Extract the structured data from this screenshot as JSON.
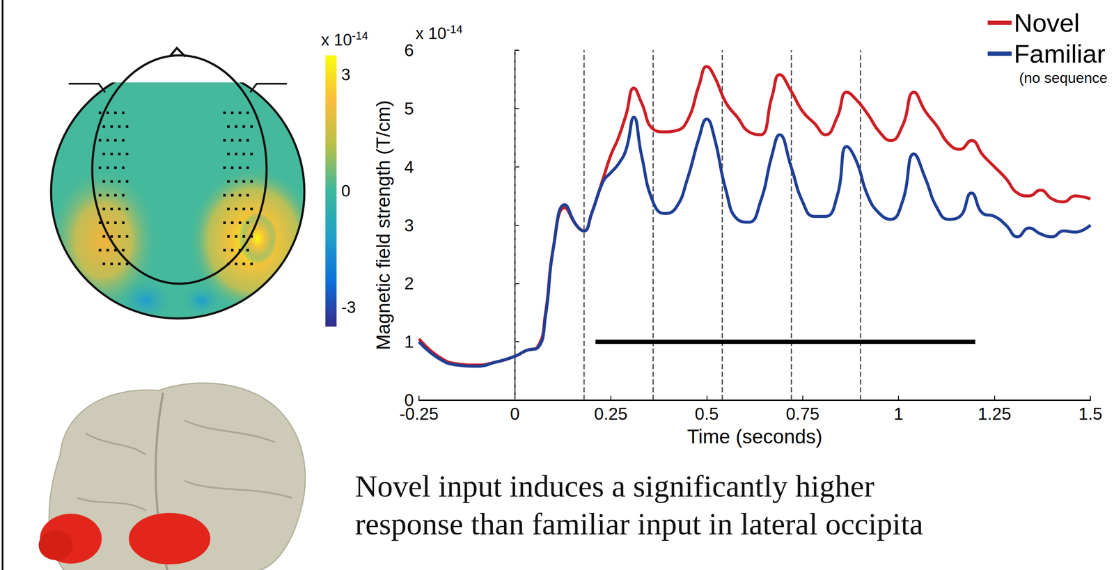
{
  "chart_data": {
    "type": "line",
    "x": [
      -0.25,
      -0.2,
      -0.15,
      -0.1,
      -0.05,
      0,
      0.03,
      0.06,
      0.08,
      0.1,
      0.13,
      0.16,
      0.18,
      0.2,
      0.23,
      0.25,
      0.27,
      0.29,
      0.31,
      0.33,
      0.36,
      0.39,
      0.42,
      0.45,
      0.48,
      0.5,
      0.52,
      0.55,
      0.58,
      0.61,
      0.64,
      0.67,
      0.69,
      0.72,
      0.75,
      0.78,
      0.81,
      0.84,
      0.865,
      0.89,
      0.92,
      0.95,
      0.98,
      1.01,
      1.04,
      1.07,
      1.1,
      1.13,
      1.16,
      1.19,
      1.22,
      1.25,
      1.28,
      1.31,
      1.34,
      1.37,
      1.4,
      1.43,
      1.46,
      1.5
    ],
    "series": [
      {
        "name": "Novel",
        "color": "#cc1f26",
        "values": [
          1.05,
          0.75,
          0.62,
          0.6,
          0.65,
          0.75,
          0.85,
          0.92,
          1.5,
          2.6,
          3.3,
          3.0,
          2.9,
          3.2,
          3.8,
          4.2,
          4.5,
          4.9,
          5.35,
          5.1,
          4.65,
          4.6,
          4.62,
          4.8,
          5.4,
          5.72,
          5.55,
          5.1,
          4.85,
          4.6,
          4.55,
          5.2,
          5.58,
          5.3,
          4.95,
          4.75,
          4.55,
          4.85,
          5.28,
          5.15,
          4.9,
          4.6,
          4.45,
          4.7,
          5.28,
          4.95,
          4.7,
          4.4,
          4.3,
          4.45,
          4.2,
          4.0,
          3.8,
          3.55,
          3.5,
          3.6,
          3.45,
          3.4,
          3.5,
          3.45
        ]
      },
      {
        "name": "Familiar",
        "color": "#1f3f94",
        "values": [
          1.0,
          0.72,
          0.6,
          0.58,
          0.65,
          0.75,
          0.85,
          0.9,
          1.45,
          2.6,
          3.35,
          3.0,
          2.9,
          3.2,
          3.75,
          3.9,
          4.05,
          4.3,
          4.85,
          4.2,
          3.4,
          3.2,
          3.3,
          3.8,
          4.5,
          4.82,
          4.5,
          3.6,
          3.1,
          3.05,
          3.4,
          4.2,
          4.55,
          4.0,
          3.4,
          3.15,
          3.15,
          3.5,
          4.35,
          4.1,
          3.5,
          3.2,
          3.1,
          3.4,
          4.22,
          3.8,
          3.3,
          3.1,
          3.15,
          3.55,
          3.2,
          3.15,
          3.0,
          2.8,
          2.95,
          2.85,
          2.8,
          2.9,
          2.88,
          3.0
        ]
      }
    ],
    "legend_note": "(no sequence",
    "xlabel": "Time (seconds)",
    "ylabel": "Magnetic field strength (T/cm)",
    "y_exponent": {
      "base": "x 10",
      "exponent": "-14"
    },
    "xlim": [
      -0.25,
      1.5
    ],
    "xticks": [
      -0.25,
      0,
      0.25,
      0.5,
      0.75,
      1,
      1.25,
      1.5
    ],
    "ylim": [
      0,
      6
    ],
    "yticks": [
      0,
      1,
      2,
      3,
      4,
      5,
      6
    ],
    "vlines": [
      0,
      0.18,
      0.36,
      0.54,
      0.72,
      0.9
    ],
    "significance_bar": {
      "x": [
        0.21,
        1.2
      ],
      "y": 1
    },
    "grid": false,
    "legend": "top-right"
  },
  "topomap": {
    "colorbar": {
      "range": [
        -3.5,
        3.5
      ],
      "ticks": [
        3,
        0,
        -3
      ],
      "exponent": {
        "base": "x 10",
        "exponent": "-14"
      }
    }
  },
  "caption": [
    "Novel input induces a significantly higher",
    "response than familiar input in lateral occipita"
  ]
}
